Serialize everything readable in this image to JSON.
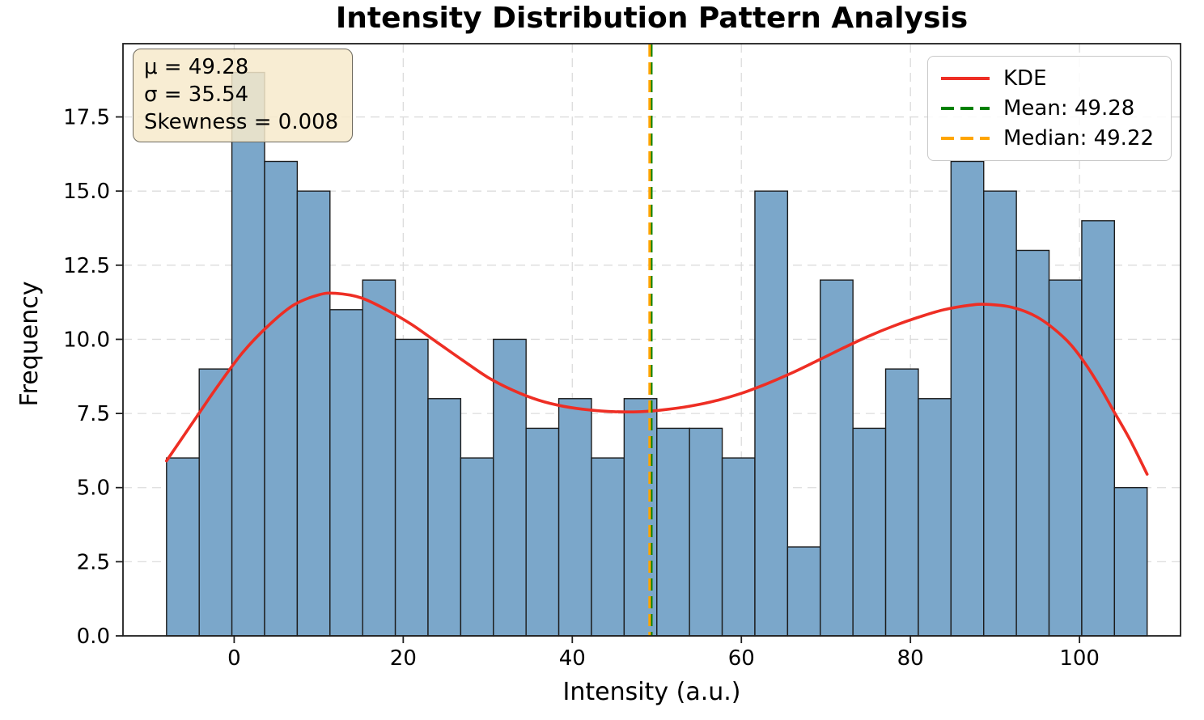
{
  "figure": {
    "title": "Intensity Distribution Pattern Analysis",
    "xlabel": "Intensity (a.u.)",
    "ylabel": "Frequency"
  },
  "stats_box": {
    "lines": [
      "μ = 49.28",
      "σ = 35.54",
      "Skewness = 0.008"
    ]
  },
  "legend": {
    "position": "upper right",
    "items": [
      {
        "label": "KDE",
        "color": "#ee2e24",
        "style": "solid"
      },
      {
        "label": "Mean: 49.28",
        "color": "#008000",
        "style": "dashed"
      },
      {
        "label": "Median: 49.22",
        "color": "#ffa500",
        "style": "dashed"
      }
    ]
  },
  "chart_data": {
    "type": "bar",
    "subtype": "histogram",
    "title": "Intensity Distribution Pattern Analysis",
    "xlabel": "Intensity (a.u.)",
    "ylabel": "Frequency",
    "grid": true,
    "xlim": [
      -13.15,
      111.95
    ],
    "ylim": [
      0,
      19.97
    ],
    "xticks": [
      0,
      20,
      40,
      60,
      80,
      100
    ],
    "xtick_labels": [
      "0",
      "20",
      "40",
      "60",
      "80",
      "100"
    ],
    "yticks": [
      0,
      2.5,
      5,
      7.5,
      10,
      12.5,
      15,
      17.5
    ],
    "ytick_labels": [
      "0.0",
      "2.5",
      "5.0",
      "7.5",
      "10.0",
      "12.5",
      "15.0",
      "17.5"
    ],
    "bin_start": -8,
    "bin_end": 108,
    "n_bins": 30,
    "counts": [
      6,
      9,
      19,
      16,
      15,
      11,
      12,
      10,
      8,
      6,
      10,
      7,
      8,
      6,
      8,
      7,
      7,
      6,
      15,
      3,
      12,
      7,
      9,
      8,
      16,
      15,
      13,
      12,
      14,
      5
    ],
    "mean": 49.28,
    "median": 49.22,
    "sigma": 35.54,
    "skewness": 0.008,
    "kde": {
      "x": [
        -8,
        -5,
        -2,
        1,
        4,
        7,
        10,
        12,
        15,
        18,
        21,
        24,
        27,
        30,
        33,
        36,
        39,
        42,
        45,
        48,
        51,
        54,
        57,
        60,
        63,
        66,
        69,
        72,
        75,
        78,
        81,
        84,
        87,
        89,
        92,
        95,
        98,
        100,
        102,
        104,
        106,
        108
      ],
      "y": [
        5.9,
        7.15,
        8.4,
        9.55,
        10.45,
        11.15,
        11.5,
        11.55,
        11.4,
        11.0,
        10.5,
        9.9,
        9.3,
        8.72,
        8.28,
        7.95,
        7.74,
        7.62,
        7.56,
        7.56,
        7.63,
        7.75,
        7.93,
        8.18,
        8.5,
        8.87,
        9.28,
        9.7,
        10.1,
        10.45,
        10.75,
        11.0,
        11.15,
        11.18,
        11.08,
        10.75,
        10.1,
        9.45,
        8.6,
        7.6,
        6.6,
        5.45
      ]
    },
    "colors": {
      "bar_fill": "#7ba7ca",
      "bar_edge": "#1c1c1c",
      "kde": "#ee2e24",
      "mean_line": "#008000",
      "median_line": "#ffa500",
      "grid": "#dcdcdc",
      "spine": "#1f1f1f",
      "tick_text": "#000000",
      "stats_bg": "#f7eacb",
      "stats_border": "#6e6a5e"
    }
  }
}
